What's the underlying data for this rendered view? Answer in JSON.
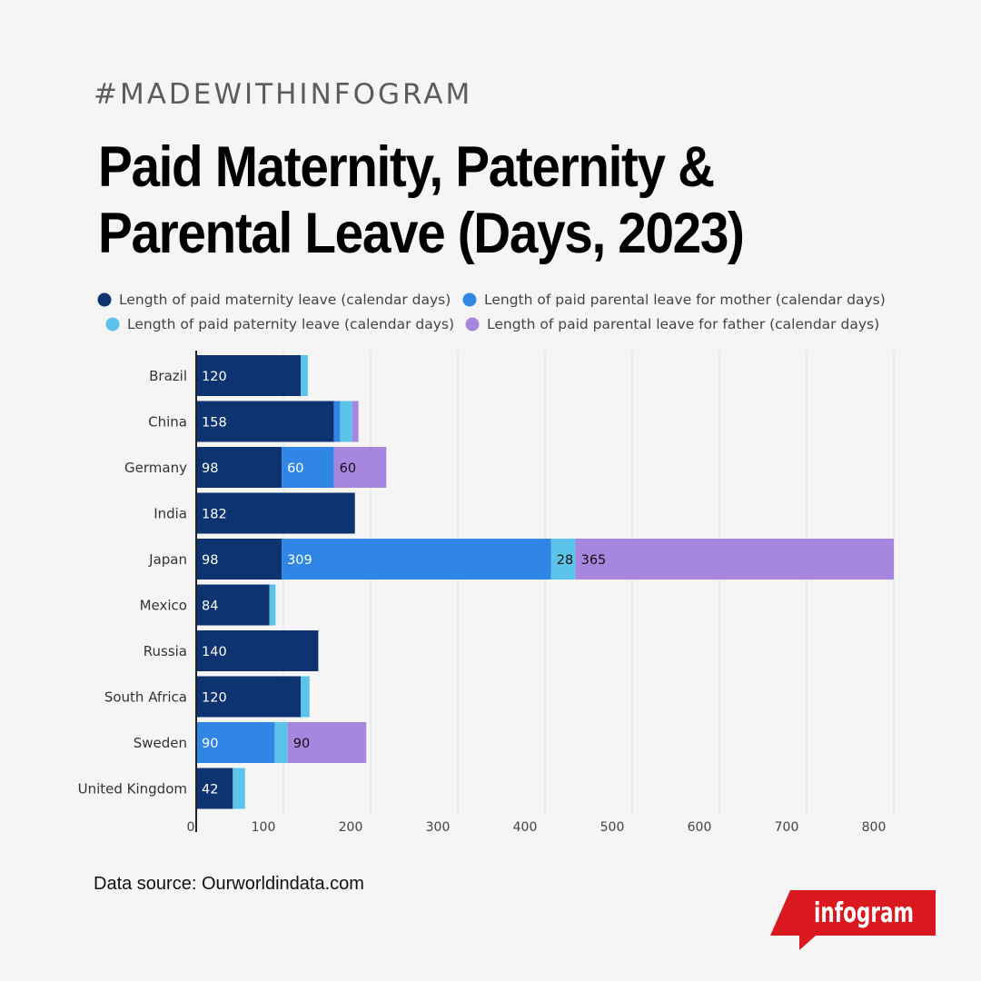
{
  "header": {
    "hashtag": "#MADEWITHINFOGRAM",
    "title": "Paid Maternity, Paternity & Parental Leave (Days, 2023)"
  },
  "footer": {
    "source": "Data source: Ourworldindata.com",
    "brand": "infogram"
  },
  "colors": {
    "maternity": "#0d3470",
    "mother": "#2f86e4",
    "paternity": "#5cc3ea",
    "father": "#a686df",
    "brand": "#d9181f"
  },
  "chart_data": {
    "type": "bar",
    "orientation": "horizontal",
    "stacked": true,
    "title": "Paid Maternity, Paternity & Parental Leave (Days, 2023)",
    "legend_position": "top",
    "grid": true,
    "xlim": [
      0,
      800
    ],
    "x_ticks": [
      0,
      100,
      200,
      300,
      400,
      500,
      600,
      700,
      800
    ],
    "categories": [
      "Brazil",
      "China",
      "Germany",
      "India",
      "Japan",
      "Mexico",
      "Russia",
      "South Africa",
      "Sweden",
      "United Kingdom"
    ],
    "series": [
      {
        "name": "Length of paid maternity leave (calendar days)",
        "color_key": "maternity",
        "values": [
          120,
          158,
          98,
          182,
          98,
          84,
          140,
          120,
          0,
          42
        ],
        "labels": [
          "120",
          "158",
          "98",
          "182",
          "98",
          "84",
          "140",
          "120",
          "",
          "42"
        ]
      },
      {
        "name": "Length of paid parental leave for mother (calendar days)",
        "color_key": "mother",
        "values": [
          0,
          7,
          60,
          0,
          309,
          0,
          0,
          0,
          90,
          0
        ],
        "labels": [
          "",
          "",
          "60",
          "",
          "309",
          "",
          "",
          "",
          "90",
          ""
        ]
      },
      {
        "name": "Length of paid paternity leave (calendar days)",
        "color_key": "paternity",
        "values": [
          8,
          14,
          0,
          0,
          28,
          7,
          0,
          10,
          15,
          14
        ],
        "labels": [
          "",
          "",
          "",
          "",
          "28",
          "",
          "",
          "",
          "",
          ""
        ]
      },
      {
        "name": "Length of paid parental leave for father (calendar days)",
        "color_key": "father",
        "values": [
          0,
          7,
          60,
          0,
          365,
          0,
          0,
          0,
          90,
          0
        ],
        "labels": [
          "",
          "",
          "60",
          "",
          "365",
          "",
          "",
          "",
          "90",
          ""
        ]
      }
    ]
  }
}
